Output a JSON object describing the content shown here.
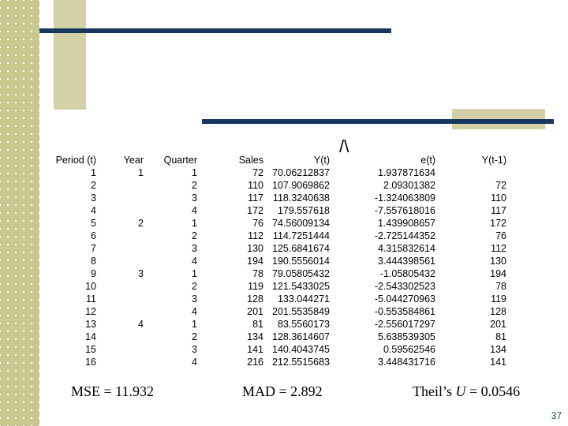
{
  "table": {
    "headers": [
      "Period (t)",
      "Year",
      "Quarter",
      "Sales",
      "Y(t)",
      "e(t)",
      "Y(t-1)"
    ],
    "hat_symbol": "/\\",
    "rows": [
      [
        "1",
        "1",
        "1",
        "72",
        "70.06212837",
        "1.937871634",
        ""
      ],
      [
        "2",
        "",
        "2",
        "110",
        "107.9069862",
        "2.09301382",
        "72"
      ],
      [
        "3",
        "",
        "3",
        "117",
        "118.3240638",
        "-1.324063809",
        "110"
      ],
      [
        "4",
        "",
        "4",
        "172",
        "179.557618",
        "-7.557618016",
        "117"
      ],
      [
        "5",
        "2",
        "1",
        "76",
        "74.56009134",
        "1.439908657",
        "172"
      ],
      [
        "6",
        "",
        "2",
        "112",
        "114.7251444",
        "-2.725144352",
        "76"
      ],
      [
        "7",
        "",
        "3",
        "130",
        "125.6841674",
        "4.315832614",
        "112"
      ],
      [
        "8",
        "",
        "4",
        "194",
        "190.5556014",
        "3.444398561",
        "130"
      ],
      [
        "9",
        "3",
        "1",
        "78",
        "79.05805432",
        "-1.05805432",
        "194"
      ],
      [
        "10",
        "",
        "2",
        "119",
        "121.5433025",
        "-2.543302523",
        "78"
      ],
      [
        "11",
        "",
        "3",
        "128",
        "133.044271",
        "-5.044270963",
        "119"
      ],
      [
        "12",
        "",
        "4",
        "201",
        "201.5535849",
        "-0.553584861",
        "128"
      ],
      [
        "13",
        "4",
        "1",
        "81",
        "83.5560173",
        "-2.556017297",
        "201"
      ],
      [
        "14",
        "",
        "2",
        "134",
        "128.3614607",
        "5.638539305",
        "81"
      ],
      [
        "15",
        "",
        "3",
        "141",
        "140.4043745",
        "0.59562546",
        "134"
      ],
      [
        "16",
        "",
        "4",
        "216",
        "212.5515683",
        "3.448431716",
        "141"
      ]
    ]
  },
  "metrics": {
    "mse": "MSE = 11.932",
    "mad": "MAD = 2.892",
    "theil_prefix": "Theil’s ",
    "theil_var": "U",
    "theil_suffix": " = 0.0546"
  },
  "page_number": "37",
  "colors": {
    "navy": "#17375e",
    "olive": "#d2d2a6",
    "grid": "#c9c98f"
  }
}
